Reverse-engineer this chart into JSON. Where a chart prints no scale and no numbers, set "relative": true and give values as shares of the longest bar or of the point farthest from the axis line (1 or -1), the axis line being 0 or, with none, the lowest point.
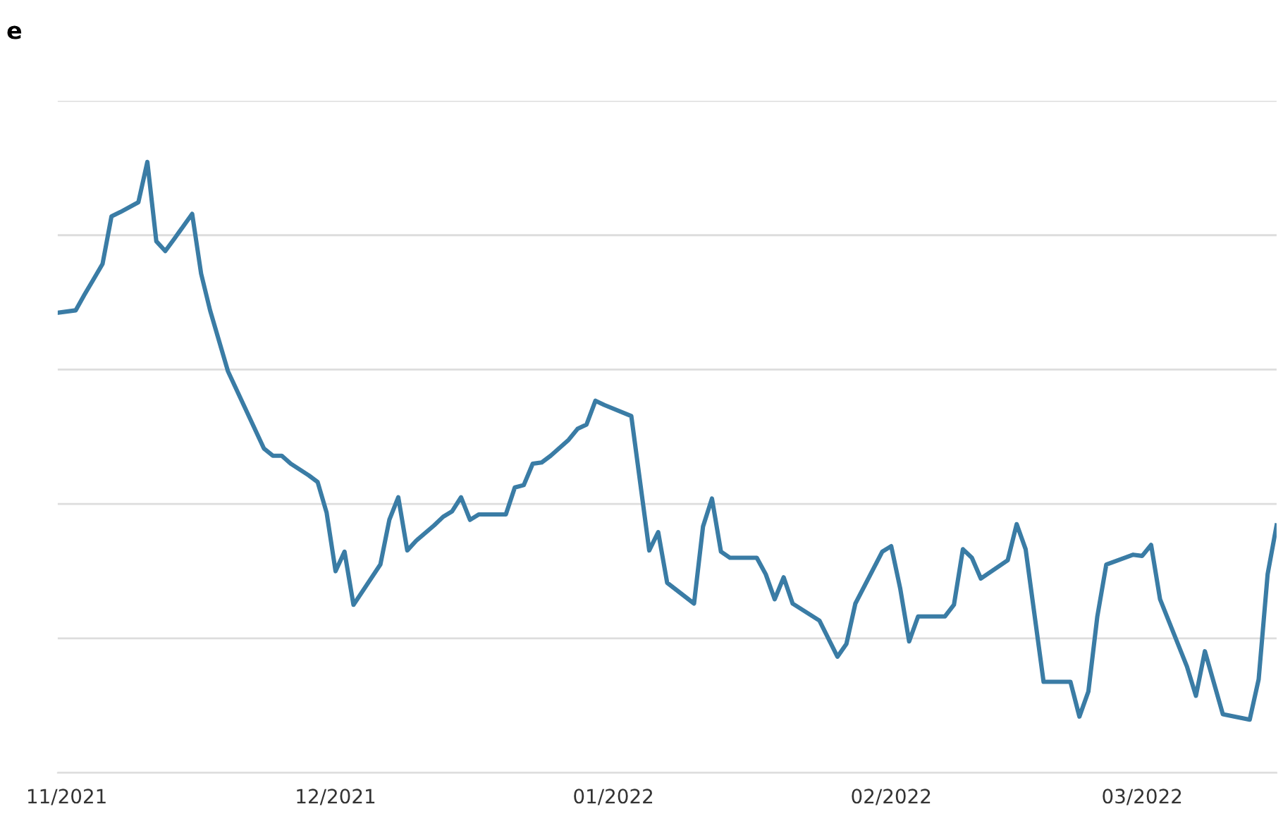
{
  "chart_data": {
    "type": "line",
    "title": "e",
    "relative": true,
    "x": [
      "2021-10-31",
      "2021-11-02",
      "2021-11-03",
      "2021-11-04",
      "2021-11-05",
      "2021-11-06",
      "2021-11-07",
      "2021-11-09",
      "2021-11-10",
      "2021-11-11",
      "2021-11-12",
      "2021-11-13",
      "2021-11-15",
      "2021-11-16",
      "2021-11-17",
      "2021-11-19",
      "2021-11-23",
      "2021-11-24",
      "2021-11-25",
      "2021-11-26",
      "2021-11-28",
      "2021-11-29",
      "2021-11-30",
      "2021-12-01",
      "2021-12-02",
      "2021-12-03",
      "2021-12-06",
      "2021-12-07",
      "2021-12-08",
      "2021-12-09",
      "2021-12-10",
      "2021-12-12",
      "2021-12-13",
      "2021-12-14",
      "2021-12-15",
      "2021-12-16",
      "2021-12-17",
      "2021-12-20",
      "2021-12-21",
      "2021-12-22",
      "2021-12-23",
      "2021-12-24",
      "2021-12-25",
      "2021-12-27",
      "2021-12-28",
      "2021-12-29",
      "2021-12-30",
      "2021-12-31",
      "2022-01-03",
      "2022-01-05",
      "2022-01-06",
      "2022-01-07",
      "2022-01-10",
      "2022-01-11",
      "2022-01-12",
      "2022-01-13",
      "2022-01-14",
      "2022-01-17",
      "2022-01-18",
      "2022-01-19",
      "2022-01-20",
      "2022-01-21",
      "2022-01-24",
      "2022-01-26",
      "2022-01-27",
      "2022-01-28",
      "2022-01-31",
      "2022-02-01",
      "2022-02-02",
      "2022-02-03",
      "2022-02-04",
      "2022-02-07",
      "2022-02-08",
      "2022-02-09",
      "2022-02-10",
      "2022-02-11",
      "2022-02-14",
      "2022-02-15",
      "2022-02-16",
      "2022-02-18",
      "2022-02-21",
      "2022-02-22",
      "2022-02-23",
      "2022-02-24",
      "2022-02-25",
      "2022-02-28",
      "2022-03-01",
      "2022-03-02",
      "2022-03-03",
      "2022-03-06",
      "2022-03-07",
      "2022-03-08",
      "2022-03-10",
      "2022-03-13",
      "2022-03-14",
      "2022-03-15",
      "2022-03-16"
    ],
    "series": [
      {
        "color": "#3a7ca5",
        "values": [
          0.753,
          0.757,
          0.783,
          0.808,
          0.833,
          0.911,
          0.918,
          0.934,
          1.0,
          0.87,
          0.854,
          0.874,
          0.915,
          0.817,
          0.757,
          0.657,
          0.531,
          0.519,
          0.519,
          0.506,
          0.487,
          0.476,
          0.426,
          0.33,
          0.362,
          0.275,
          0.341,
          0.414,
          0.451,
          0.364,
          0.38,
          0.405,
          0.419,
          0.428,
          0.451,
          0.414,
          0.423,
          0.423,
          0.467,
          0.471,
          0.506,
          0.508,
          0.519,
          0.545,
          0.563,
          0.57,
          0.609,
          0.602,
          0.584,
          0.364,
          0.394,
          0.311,
          0.277,
          0.403,
          0.449,
          0.362,
          0.352,
          0.352,
          0.325,
          0.284,
          0.32,
          0.277,
          0.249,
          0.19,
          0.211,
          0.277,
          0.362,
          0.371,
          0.302,
          0.215,
          0.256,
          0.256,
          0.275,
          0.366,
          0.352,
          0.318,
          0.348,
          0.407,
          0.366,
          0.149,
          0.149,
          0.092,
          0.133,
          0.256,
          0.341,
          0.357,
          0.355,
          0.373,
          0.284,
          0.174,
          0.126,
          0.199,
          0.096,
          0.087,
          0.153,
          0.325,
          0.405
        ]
      }
    ],
    "xlim": [
      "2021-10-31",
      "2022-03-16"
    ],
    "xticks": [
      {
        "value": "2021-11-01",
        "label": "11/2021"
      },
      {
        "value": "2021-12-01",
        "label": "12/2021"
      },
      {
        "value": "2022-01-01",
        "label": "01/2022"
      },
      {
        "value": "2022-02-01",
        "label": "02/2022"
      },
      {
        "value": "2022-03-01",
        "label": "03/2022"
      }
    ],
    "grid": "y",
    "marker": "none",
    "line_style": "solid"
  }
}
